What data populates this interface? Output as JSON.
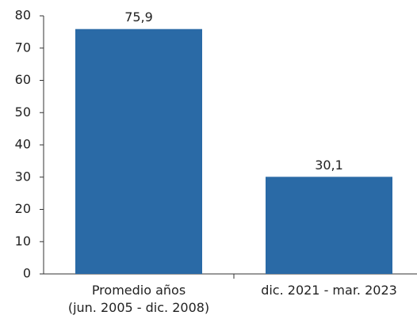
{
  "chart_data": {
    "type": "bar",
    "categories": [
      "Promedio años\n(jun. 2005 - dic. 2008)",
      "dic. 2021 - mar. 2023"
    ],
    "values": [
      75.9,
      30.1
    ],
    "value_labels": [
      "75,9",
      "30,1"
    ],
    "color": "#2a6aa6",
    "ylim": [
      0,
      80
    ],
    "yticks": [
      0,
      10,
      20,
      30,
      40,
      50,
      60,
      70,
      80
    ],
    "grid": false
  }
}
